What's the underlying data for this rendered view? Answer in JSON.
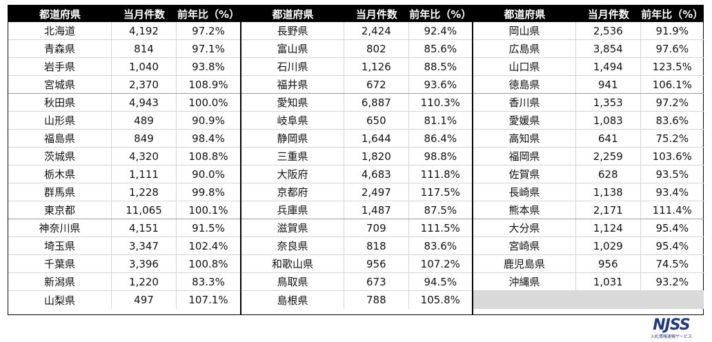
{
  "header": {
    "pref": "都道府県",
    "count": "当月件数",
    "ratio": "前年比（%）"
  },
  "blocks": [
    {
      "rows": [
        [
          "北海道",
          "4,192",
          "97.2%"
        ],
        [
          "青森県",
          "814",
          "97.1%"
        ],
        [
          "岩手県",
          "1,040",
          "93.8%"
        ],
        [
          "宮城県",
          "2,370",
          "108.9%"
        ],
        [
          "秋田県",
          "4,943",
          "100.0%"
        ],
        [
          "山形県",
          "489",
          "90.9%"
        ],
        [
          "福島県",
          "849",
          "98.4%"
        ],
        [
          "茨城県",
          "4,320",
          "108.8%"
        ],
        [
          "栃木県",
          "1,111",
          "90.0%"
        ],
        [
          "群馬県",
          "1,228",
          "99.8%"
        ],
        [
          "東京都",
          "11,065",
          "100.1%"
        ],
        [
          "神奈川県",
          "4,151",
          "91.5%"
        ],
        [
          "埼玉県",
          "3,347",
          "102.4%"
        ],
        [
          "千葉県",
          "3,396",
          "100.8%"
        ],
        [
          "新潟県",
          "1,220",
          "83.3%"
        ],
        [
          "山梨県",
          "497",
          "107.1%"
        ]
      ]
    },
    {
      "rows": [
        [
          "長野県",
          "2,424",
          "92.4%"
        ],
        [
          "富山県",
          "802",
          "85.6%"
        ],
        [
          "石川県",
          "1,126",
          "88.5%"
        ],
        [
          "福井県",
          "672",
          "93.6%"
        ],
        [
          "愛知県",
          "6,887",
          "110.3%"
        ],
        [
          "岐阜県",
          "650",
          "81.1%"
        ],
        [
          "静岡県",
          "1,644",
          "86.4%"
        ],
        [
          "三重県",
          "1,820",
          "98.8%"
        ],
        [
          "大阪府",
          "4,683",
          "111.8%"
        ],
        [
          "京都府",
          "2,497",
          "117.5%"
        ],
        [
          "兵庫県",
          "1,487",
          "87.5%"
        ],
        [
          "滋賀県",
          "709",
          "111.5%"
        ],
        [
          "奈良県",
          "818",
          "83.6%"
        ],
        [
          "和歌山県",
          "956",
          "107.2%"
        ],
        [
          "鳥取県",
          "673",
          "94.5%"
        ],
        [
          "島根県",
          "788",
          "105.8%"
        ]
      ]
    },
    {
      "rows": [
        [
          "岡山県",
          "2,536",
          "91.9%"
        ],
        [
          "広島県",
          "3,854",
          "97.6%"
        ],
        [
          "山口県",
          "1,494",
          "123.5%"
        ],
        [
          "徳島県",
          "941",
          "106.1%"
        ],
        [
          "香川県",
          "1,353",
          "97.2%"
        ],
        [
          "愛媛県",
          "1,083",
          "83.6%"
        ],
        [
          "高知県",
          "641",
          "75.2%"
        ],
        [
          "福岡県",
          "2,259",
          "103.6%"
        ],
        [
          "佐賀県",
          "628",
          "93.5%"
        ],
        [
          "長崎県",
          "1,138",
          "93.4%"
        ],
        [
          "熊本県",
          "2,171",
          "111.4%"
        ],
        [
          "大分県",
          "1,124",
          "95.4%"
        ],
        [
          "宮崎県",
          "1,029",
          "95.4%"
        ],
        [
          "鹿児島県",
          "956",
          "74.5%"
        ],
        [
          "沖縄県",
          "1,031",
          "93.2%"
        ]
      ]
    }
  ],
  "logo": {
    "text": "NJSS",
    "sub": "入札情報速報サービス"
  }
}
